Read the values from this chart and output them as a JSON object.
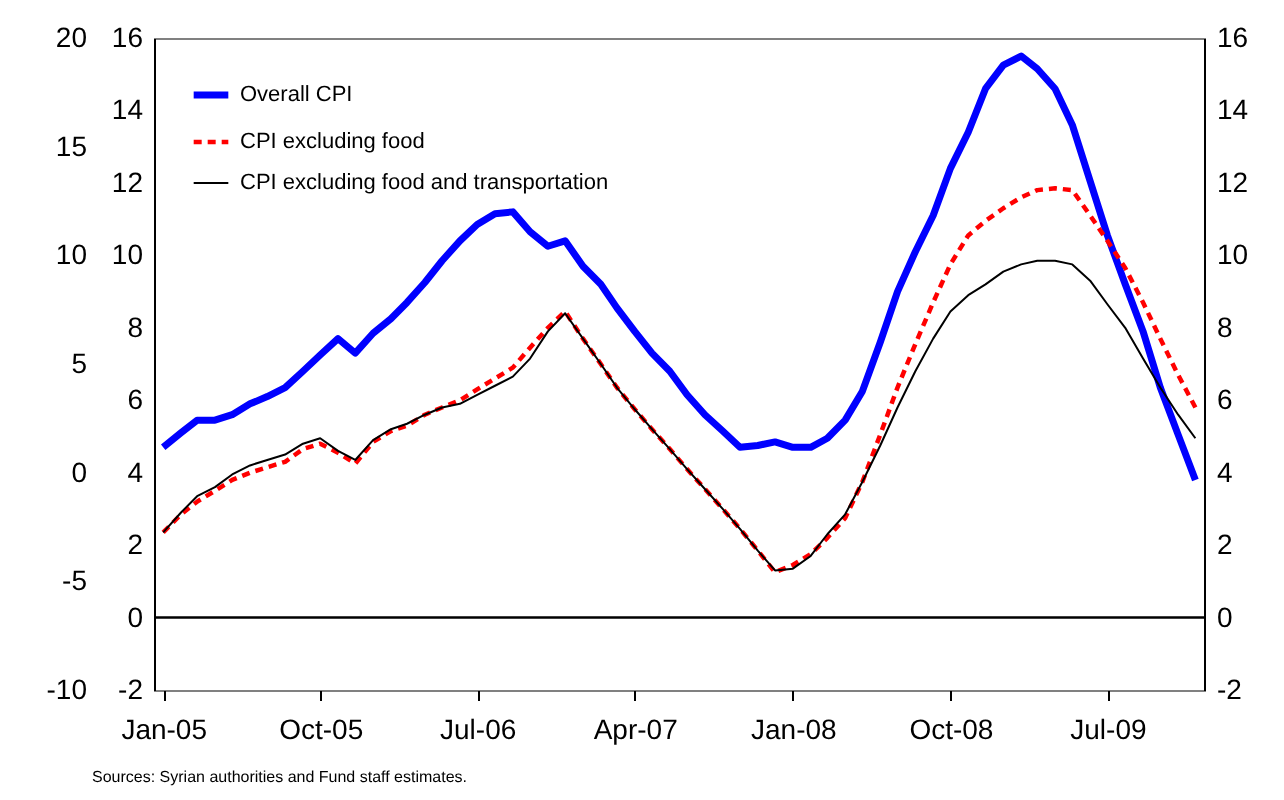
{
  "chart_data": {
    "type": "line",
    "annotations": [
      "Sources: Syrian authorities and Fund staff estimates."
    ],
    "x": [
      "2005-01",
      "2005-02",
      "2005-03",
      "2005-04",
      "2005-05",
      "2005-06",
      "2005-07",
      "2005-08",
      "2005-09",
      "2005-10",
      "2005-11",
      "2005-12",
      "2006-01",
      "2006-02",
      "2006-03",
      "2006-04",
      "2006-05",
      "2006-06",
      "2006-07",
      "2006-08",
      "2006-09",
      "2006-10",
      "2006-11",
      "2006-12",
      "2007-01",
      "2007-02",
      "2007-03",
      "2007-04",
      "2007-05",
      "2007-06",
      "2007-07",
      "2007-08",
      "2007-09",
      "2007-10",
      "2007-11",
      "2007-12",
      "2008-01",
      "2008-02",
      "2008-03",
      "2008-04",
      "2008-05",
      "2008-06",
      "2008-07",
      "2008-08",
      "2008-09",
      "2008-10",
      "2008-11",
      "2008-12",
      "2009-01",
      "2009-02",
      "2009-03",
      "2009-04",
      "2009-05",
      "2009-06",
      "2009-07",
      "2009-08",
      "2009-09",
      "2009-10",
      "2009-11",
      "2009-12"
    ],
    "series": [
      {
        "name": "Overall CPI",
        "color": "#0000ff",
        "line_style": "solid",
        "values": [
          4.7,
          5.1,
          5.45,
          5.45,
          5.6,
          5.9,
          6.1,
          6.35,
          6.8,
          7.25,
          7.7,
          7.3,
          7.85,
          8.25,
          8.7,
          9.25,
          9.85,
          10.4,
          10.85,
          11.15,
          11.2,
          10.65,
          10.25,
          10.4,
          9.7,
          9.2,
          8.55,
          7.9,
          7.3,
          6.8,
          6.15,
          5.6,
          5.15,
          4.7,
          4.75,
          4.85,
          4.7,
          4.7,
          4.95,
          5.45,
          6.25,
          7.6,
          9.0,
          10.1,
          11.1,
          12.4,
          13.4,
          14.6,
          15.25,
          15.5,
          15.15,
          14.6,
          13.6,
          12.05,
          10.55,
          9.2,
          7.9,
          6.35,
          5.05,
          3.8
        ]
      },
      {
        "name": "CPI excluding food",
        "color": "#ff0000",
        "line_style": "dashed",
        "values": [
          2.35,
          2.85,
          3.2,
          3.5,
          3.8,
          4.0,
          4.15,
          4.3,
          4.65,
          4.8,
          4.55,
          4.25,
          4.85,
          5.15,
          5.3,
          5.6,
          5.8,
          6.0,
          6.3,
          6.6,
          6.9,
          7.45,
          8.0,
          8.45,
          7.7,
          7.0,
          6.35,
          5.75,
          5.2,
          4.65,
          4.1,
          3.55,
          3.0,
          2.45,
          1.85,
          1.25,
          1.45,
          1.75,
          2.2,
          2.75,
          3.75,
          5.05,
          6.35,
          7.55,
          8.7,
          9.75,
          10.55,
          10.95,
          11.3,
          11.6,
          11.8,
          11.85,
          11.8,
          11.1,
          10.4,
          9.65,
          8.7,
          7.7,
          6.7,
          5.8
        ]
      },
      {
        "name": "CPI excluding food and transportation",
        "color": "#000000",
        "line_style": "solid",
        "values": [
          2.35,
          2.9,
          3.35,
          3.6,
          3.95,
          4.2,
          4.35,
          4.5,
          4.8,
          4.95,
          4.6,
          4.35,
          4.9,
          5.2,
          5.35,
          5.6,
          5.8,
          5.9,
          6.15,
          6.4,
          6.65,
          7.15,
          7.9,
          8.4,
          7.7,
          7.0,
          6.35,
          5.75,
          5.2,
          4.65,
          4.1,
          3.55,
          3.0,
          2.45,
          1.85,
          1.3,
          1.35,
          1.7,
          2.3,
          2.85,
          3.75,
          4.75,
          5.8,
          6.8,
          7.7,
          8.45,
          8.9,
          9.2,
          9.55,
          9.75,
          9.85,
          9.85,
          9.75,
          9.3,
          8.65,
          8.0,
          7.15,
          6.35,
          5.6,
          4.95
        ]
      }
    ],
    "xlim": [
      "2004-12-16",
      "2009-12-16"
    ],
    "xticks": [
      {
        "value": "2005-01",
        "label": "Jan-05"
      },
      {
        "value": "2005-10",
        "label": "Oct-05"
      },
      {
        "value": "2006-07",
        "label": "Jul-06"
      },
      {
        "value": "2007-04",
        "label": "Apr-07"
      },
      {
        "value": "2008-01",
        "label": "Jan-08"
      },
      {
        "value": "2008-10",
        "label": "Oct-08"
      },
      {
        "value": "2009-07",
        "label": "Jul-09"
      }
    ],
    "ylim": [
      -2,
      16
    ],
    "yticks": [
      -2,
      0,
      2,
      4,
      6,
      8,
      10,
      12,
      14,
      16
    ],
    "y2lim": [
      -2,
      16
    ],
    "y2ticks": [
      -2,
      0,
      2,
      4,
      6,
      8,
      10,
      12,
      14,
      16
    ],
    "y3lim": [
      -10,
      20
    ],
    "y3ticks": [
      -10,
      -5,
      0,
      5,
      10,
      15,
      20
    ],
    "ref_lines": [
      {
        "axis": "y",
        "value": 0,
        "color": "#000000"
      }
    ],
    "legend": "top left",
    "grid": false
  }
}
